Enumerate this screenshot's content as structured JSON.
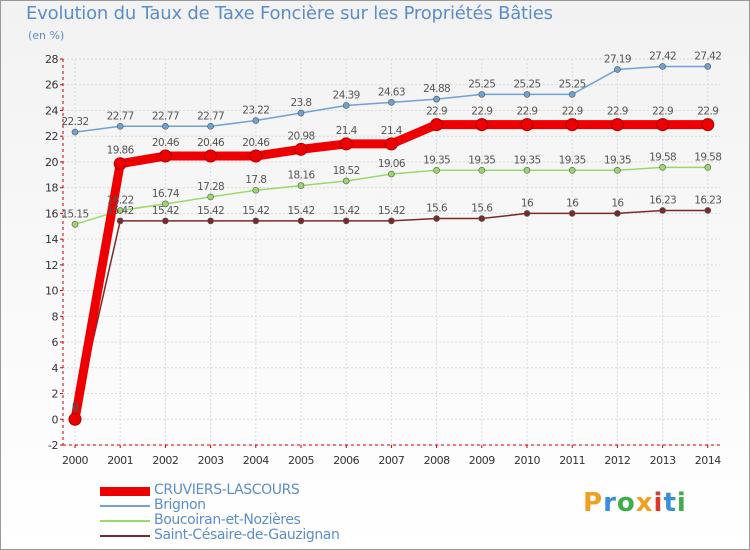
{
  "title": "Evolution du Taux de Taxe Foncière sur les Propriétés Bâties",
  "unit": "(en %)",
  "logo": {
    "letters": [
      "P",
      "r",
      "o",
      "x",
      "i",
      "t",
      "i"
    ],
    "colors": [
      "#f0a020",
      "#3a8fd8",
      "#3fae49",
      "#f0a020",
      "#d93a2b",
      "#3a8fd8",
      "#3fae49"
    ]
  },
  "chart_data": {
    "type": "line",
    "x": [
      "2000",
      "2001",
      "2002",
      "2003",
      "2004",
      "2005",
      "2006",
      "2007",
      "2008",
      "2009",
      "2010",
      "2011",
      "2012",
      "2013",
      "2014"
    ],
    "ylim": [
      -2,
      28
    ],
    "yticks": [
      "-2",
      "0",
      "2",
      "4",
      "6",
      "8",
      "10",
      "12",
      "14",
      "16",
      "18",
      "20",
      "22",
      "24",
      "26",
      "28"
    ],
    "series": [
      {
        "name": "CRUVIERS-LASCOURS",
        "color": "#ee0000",
        "width": 9,
        "values": [
          0,
          19.86,
          20.46,
          20.46,
          20.46,
          20.98,
          21.4,
          21.4,
          22.9,
          22.9,
          22.9,
          22.9,
          22.9,
          22.9,
          22.9
        ],
        "labels": [
          "0",
          "19.86",
          "20.46",
          "20.46",
          "20.46",
          "20.98",
          "21.4",
          "21.4",
          "22.9",
          "22.9",
          "22.9",
          "22.9",
          "22.9",
          "22.9",
          "22.9"
        ]
      },
      {
        "name": "Brignon",
        "color": "#6ea1d4",
        "width": 1.5,
        "values": [
          22.32,
          22.77,
          22.77,
          22.77,
          23.22,
          23.8,
          24.39,
          24.63,
          24.88,
          25.25,
          25.25,
          25.25,
          27.19,
          27.42,
          27.42
        ],
        "labels": [
          "22.32",
          "22.77",
          "22.77",
          "22.77",
          "23.22",
          "23.8",
          "24.39",
          "24.63",
          "24.88",
          "25.25",
          "25.25",
          "25.25",
          "27.19",
          "27.42",
          "27.42"
        ]
      },
      {
        "name": "Boucoiran-et-Nozières",
        "color": "#99d96a",
        "width": 1.5,
        "values": [
          15.15,
          16.22,
          16.74,
          17.28,
          17.8,
          18.16,
          18.52,
          19.06,
          19.35,
          19.35,
          19.35,
          19.35,
          19.35,
          19.58,
          19.58
        ],
        "labels": [
          "15.15",
          "16.22",
          "16.74",
          "17.28",
          "17.8",
          "18.16",
          "18.52",
          "19.06",
          "19.35",
          "19.35",
          "19.35",
          "19.35",
          "19.35",
          "19.58",
          "19.58"
        ]
      },
      {
        "name": "Saint-Césaire-de-Gauzignan",
        "color": "#7a2a2a",
        "width": 1.5,
        "values": [
          0,
          15.42,
          15.42,
          15.42,
          15.42,
          15.42,
          15.42,
          15.42,
          15.6,
          15.6,
          16,
          16,
          16,
          16.23,
          16.23
        ],
        "labels": [
          "0",
          "15.42",
          "15.42",
          "15.42",
          "15.42",
          "15.42",
          "15.42",
          "15.42",
          "15.6",
          "15.6",
          "16",
          "16",
          "16",
          "16.23",
          "16.23"
        ]
      }
    ]
  }
}
